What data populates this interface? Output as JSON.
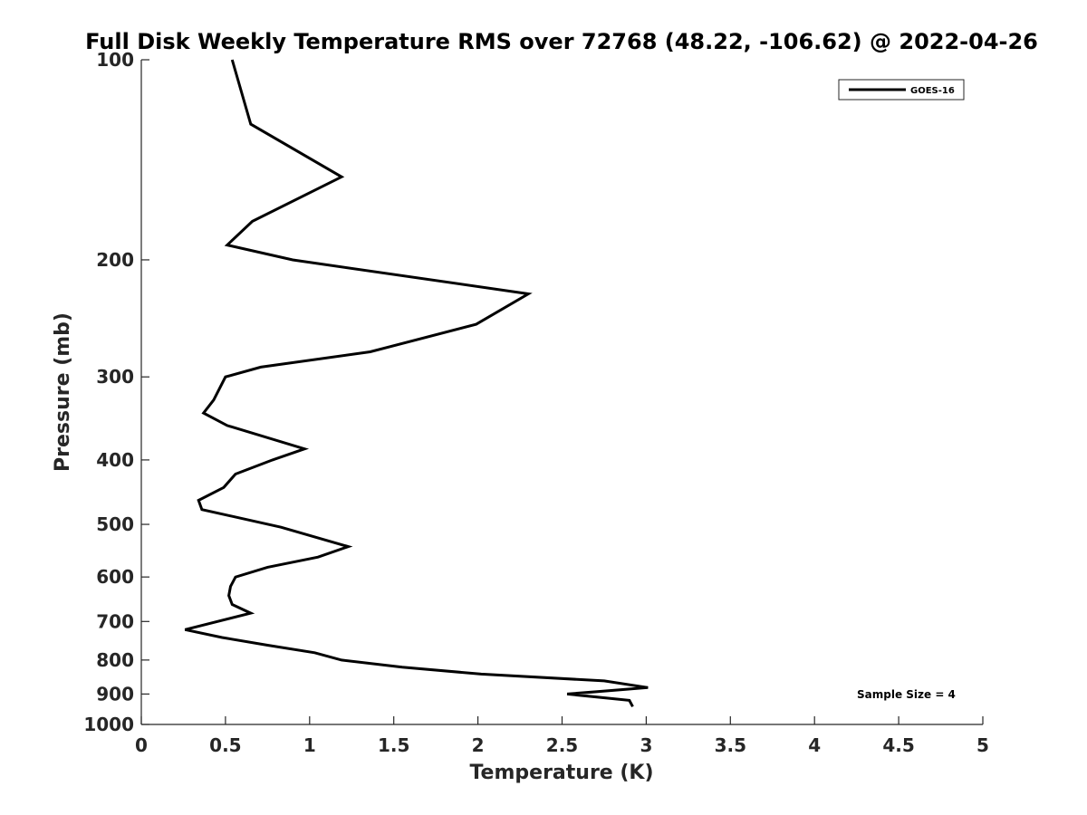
{
  "chart_data": {
    "type": "line",
    "title": "Full Disk Weekly Temperature RMS over 72768 (48.22, -106.62) @ 2022-04-26",
    "xlabel": "Temperature (K)",
    "ylabel": "Pressure (mb)",
    "xlim": [
      0,
      5
    ],
    "ylim": [
      100,
      1000
    ],
    "y_scale": "log",
    "y_reversed": true,
    "x_ticks": [
      "0",
      "0.5",
      "1",
      "1.5",
      "2",
      "2.5",
      "3",
      "3.5",
      "4",
      "4.5",
      "5"
    ],
    "y_ticks": [
      "100",
      "200",
      "300",
      "400",
      "500",
      "600",
      "700",
      "800",
      "900",
      "1000"
    ],
    "grid": false,
    "legend_position": "top-right",
    "annotation": "Sample Size = 4",
    "series": [
      {
        "name": "GOES-16",
        "color": "#000000",
        "x": [
          0.54,
          0.65,
          1.19,
          0.66,
          0.51,
          0.9,
          2.3,
          1.99,
          1.36,
          0.71,
          0.5,
          0.43,
          0.37,
          0.51,
          0.97,
          0.78,
          0.56,
          0.49,
          0.34,
          0.36,
          0.83,
          1.23,
          1.05,
          0.75,
          0.56,
          0.53,
          0.52,
          0.54,
          0.65,
          0.26,
          0.48,
          0.75,
          1.03,
          1.19,
          1.55,
          2.02,
          2.75,
          3.01,
          2.53,
          2.9,
          2.92
        ],
        "y": [
          100,
          125,
          150,
          175,
          190,
          200,
          225,
          250,
          275,
          290,
          300,
          325,
          340,
          355,
          385,
          400,
          420,
          440,
          460,
          475,
          505,
          540,
          560,
          580,
          600,
          620,
          640,
          660,
          680,
          720,
          740,
          760,
          780,
          800,
          820,
          840,
          860,
          880,
          900,
          920,
          940
        ]
      }
    ]
  }
}
